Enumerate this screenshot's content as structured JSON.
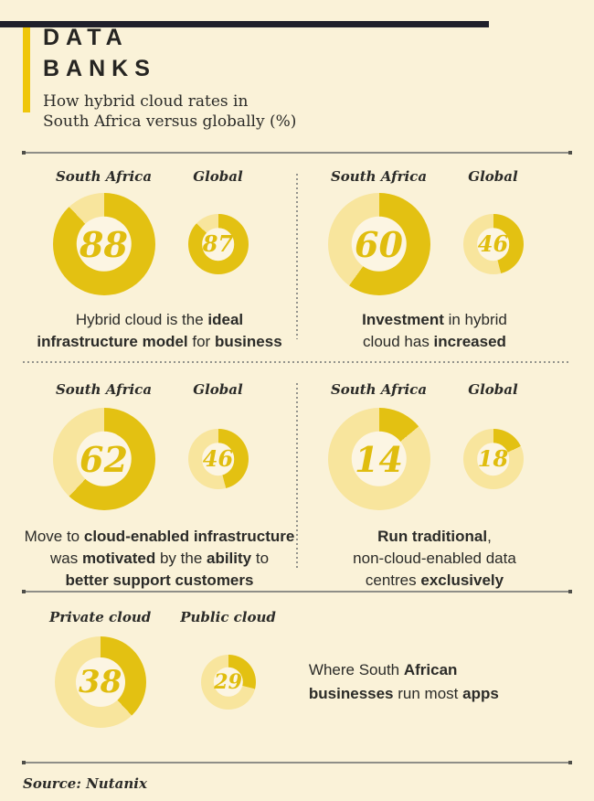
{
  "meta": {
    "background": "#FAF2D8",
    "top_bar_color": "#20202B",
    "accent_bar_color": "#EFC60A",
    "gold": "#E3C112",
    "light_gold": "#F8E59D",
    "hole_color": "#FCF5E3",
    "number_color": "#E0BD0E",
    "text_color": "#2B2B28"
  },
  "header": {
    "title_line1": "DATA",
    "title_line2": "BANKS",
    "subtitle_line1": "How hybrid cloud rates in",
    "subtitle_line2": "South Africa versus globally (%)"
  },
  "source": "Source: Nutanix",
  "chart_data": {
    "type": "pie",
    "subtype": "donut",
    "unit": "%",
    "title": "How hybrid cloud rates in South Africa versus globally (%)",
    "arc_start": "12 o'clock, clockwise",
    "panels": [
      {
        "id": "ideal-model",
        "charts": [
          {
            "label": "South Africa",
            "value": 88,
            "size": "lg"
          },
          {
            "label": "Global",
            "value": 87,
            "size": "sm"
          }
        ],
        "caption_segments": [
          {
            "t": "Hybrid cloud is the ",
            "b": 0
          },
          {
            "t": "ideal",
            "b": 1
          },
          {
            "t": "\n",
            "b": 0
          },
          {
            "t": "infrastructure model",
            "b": 1
          },
          {
            "t": " for ",
            "b": 0
          },
          {
            "t": "business",
            "b": 1
          }
        ]
      },
      {
        "id": "investment-increased",
        "charts": [
          {
            "label": "South Africa",
            "value": 60,
            "size": "lg"
          },
          {
            "label": "Global",
            "value": 46,
            "size": "sm"
          }
        ],
        "caption_segments": [
          {
            "t": "Investment",
            "b": 1
          },
          {
            "t": " in hybrid\ncloud has ",
            "b": 0
          },
          {
            "t": "increased",
            "b": 1
          }
        ]
      },
      {
        "id": "move-motivation",
        "charts": [
          {
            "label": "South Africa",
            "value": 62,
            "size": "lg"
          },
          {
            "label": "Global",
            "value": 46,
            "size": "sm"
          }
        ],
        "caption_segments": [
          {
            "t": "Move to ",
            "b": 0
          },
          {
            "t": "cloud-enabled infrastructure",
            "b": 1
          },
          {
            "t": "\nwas ",
            "b": 0
          },
          {
            "t": "motivated",
            "b": 1
          },
          {
            "t": " by the ",
            "b": 0
          },
          {
            "t": "ability",
            "b": 1
          },
          {
            "t": " to\n",
            "b": 0
          },
          {
            "t": "better support customers",
            "b": 1
          }
        ]
      },
      {
        "id": "traditional-only",
        "charts": [
          {
            "label": "South Africa",
            "value": 14,
            "size": "lg"
          },
          {
            "label": "Global",
            "value": 18,
            "size": "sm"
          }
        ],
        "caption_segments": [
          {
            "t": "Run traditional",
            "b": 1
          },
          {
            "t": ",\nnon-cloud-enabled data\ncentres ",
            "b": 0
          },
          {
            "t": "exclusively",
            "b": 1
          }
        ]
      },
      {
        "id": "where-apps-run",
        "charts": [
          {
            "label": "Private cloud",
            "value": 38,
            "size": "lg2"
          },
          {
            "label": "Public cloud",
            "value": 29,
            "size": "sm2"
          }
        ],
        "caption_segments": [
          {
            "t": "Where South ",
            "b": 0
          },
          {
            "t": "African",
            "b": 1
          },
          {
            "t": "\n",
            "b": 0
          },
          {
            "t": "businesses",
            "b": 1
          },
          {
            "t": " run most ",
            "b": 0
          },
          {
            "t": "apps",
            "b": 1
          }
        ]
      }
    ]
  }
}
